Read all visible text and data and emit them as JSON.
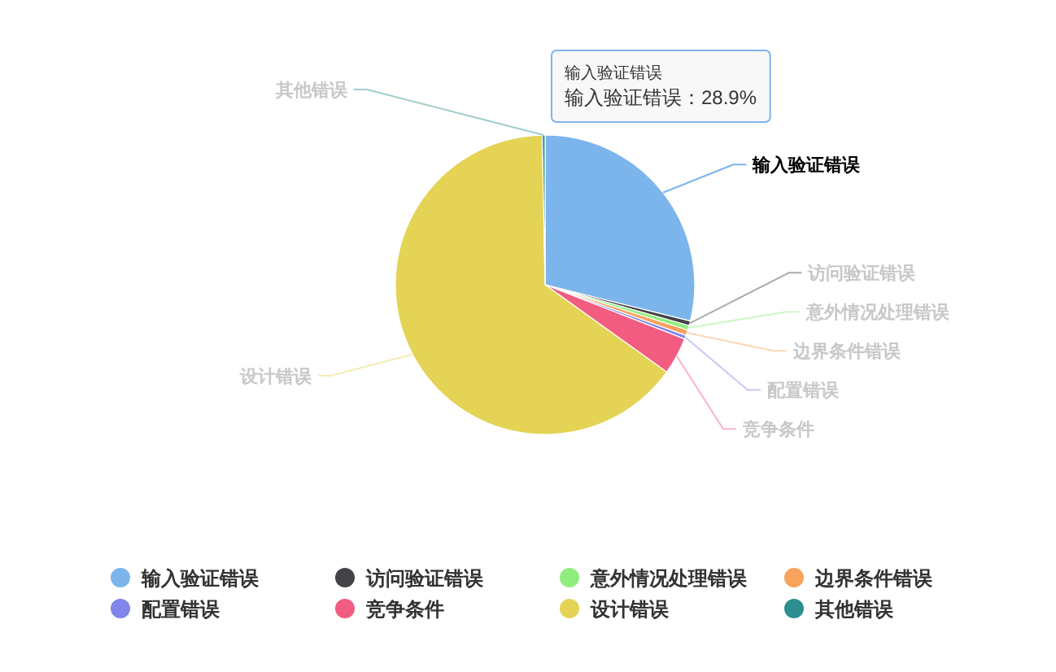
{
  "chart_data": {
    "type": "pie",
    "categories": [
      "输入验证错误",
      "访问验证错误",
      "意外情况处理错误",
      "边界条件错误",
      "配置错误",
      "竞争条件",
      "设计错误",
      "其他错误"
    ],
    "values": [
      28.9,
      0.5,
      0.5,
      0.6,
      0.4,
      4.0,
      64.8,
      0.3
    ],
    "colors": [
      "#7cb5ec",
      "#434348",
      "#90ed7d",
      "#f7a35c",
      "#8085e9",
      "#f15c80",
      "#e4d354",
      "#2b908f"
    ],
    "legend": "bottom",
    "annotations": [
      {
        "text": "输入验证错误",
        "x": "输入验证错误"
      },
      {
        "text": "输入验证错误：28.9%",
        "x": "输入验证错误"
      }
    ]
  }
}
